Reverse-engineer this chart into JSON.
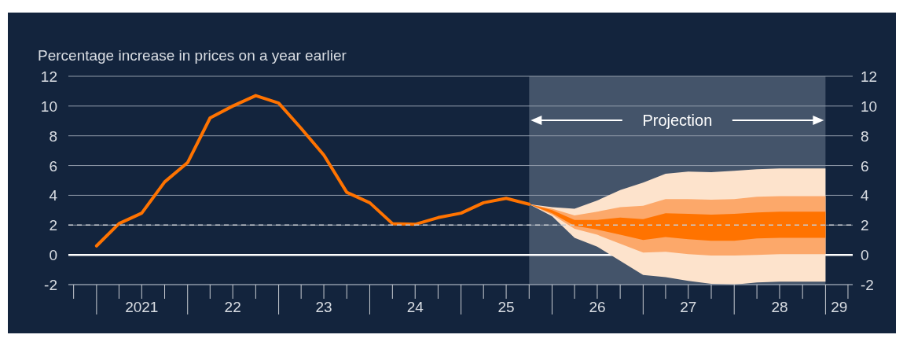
{
  "chart_data": {
    "type": "line",
    "ylabel": "Percentage increase in prices on a year earlier",
    "xlim": [
      "2020-09-10",
      "2029-04-20"
    ],
    "xticks": [
      {
        "value": "2021-07-01",
        "label": "2021"
      },
      {
        "value": "2022-07-01",
        "label": "22"
      },
      {
        "value": "2023-07-01",
        "label": "23"
      },
      {
        "value": "2024-07-01",
        "label": "24"
      },
      {
        "value": "2025-07-01",
        "label": "25"
      },
      {
        "value": "2026-07-01",
        "label": "26"
      },
      {
        "value": "2027-07-01",
        "label": "27"
      },
      {
        "value": "2028-07-01",
        "label": "28"
      },
      {
        "value": "2029-02-25",
        "label": "29"
      }
    ],
    "ylim": [
      -2,
      12
    ],
    "yticks": [
      -2,
      0,
      2,
      4,
      6,
      8,
      10,
      12
    ],
    "y2lim": [
      -2,
      12
    ],
    "y2ticks": [
      -2,
      0,
      2,
      4,
      6,
      8,
      10,
      12
    ],
    "grid": "y",
    "line_style": "solid",
    "marker": "none",
    "bands": [
      {
        "axis": "x",
        "from": "2025-10-01",
        "to": "2029-01-01",
        "label": "Projection",
        "color": "#44546a"
      }
    ],
    "ref_lines": [
      {
        "axis": "y",
        "value": 2,
        "color": "#c8ccd2",
        "line_style": "dashed"
      }
    ],
    "series": [
      {
        "color": "#fde3cc",
        "x": [
          "2025-10-01",
          "2026-01-01",
          "2026-04-01",
          "2026-07-01",
          "2026-10-01",
          "2027-01-01",
          "2027-04-01",
          "2027-07-01",
          "2027-10-01",
          "2028-01-01",
          "2028-04-01",
          "2028-07-01",
          "2028-10-01",
          "2029-01-01"
        ],
        "values": [
          null,
          null,
          null,
          null,
          null,
          null,
          null,
          null,
          null,
          null,
          null,
          null,
          null,
          null
        ],
        "lower": [
          3.4,
          2.6,
          1.15,
          0.55,
          -0.4,
          -1.35,
          -1.5,
          -1.75,
          -1.95,
          -2,
          -1.85,
          -1.8,
          -1.8,
          -1.8
        ],
        "upper": [
          3.4,
          3.2,
          3.1,
          3.65,
          4.35,
          4.85,
          5.45,
          5.6,
          5.55,
          5.65,
          5.75,
          5.8,
          5.8,
          5.8
        ]
      },
      {
        "color": "#fca86a",
        "x": [
          "2025-10-01",
          "2026-01-01",
          "2026-04-01",
          "2026-07-01",
          "2026-10-01",
          "2027-01-01",
          "2027-04-01",
          "2027-07-01",
          "2027-10-01",
          "2028-01-01",
          "2028-04-01",
          "2028-07-01",
          "2028-10-01",
          "2029-01-01"
        ],
        "values": [
          null,
          null,
          null,
          null,
          null,
          null,
          null,
          null,
          null,
          null,
          null,
          null,
          null,
          null
        ],
        "lower": [
          3.4,
          2.7,
          1.75,
          1.35,
          0.75,
          0.15,
          0.2,
          0.05,
          -0.05,
          -0.05,
          0,
          0.05,
          0.05,
          0.05
        ],
        "upper": [
          3.4,
          3.1,
          2.65,
          2.9,
          3.2,
          3.3,
          3.75,
          3.75,
          3.7,
          3.75,
          3.9,
          3.95,
          3.95,
          3.95
        ]
      },
      {
        "color": "#ff7300",
        "x": [
          "2025-10-01",
          "2026-01-01",
          "2026-04-01",
          "2026-07-01",
          "2026-10-01",
          "2027-01-01",
          "2027-04-01",
          "2027-07-01",
          "2027-10-01",
          "2028-01-01",
          "2028-04-01",
          "2028-07-01",
          "2028-10-01",
          "2029-01-01"
        ],
        "values": [
          null,
          null,
          null,
          null,
          null,
          null,
          null,
          null,
          null,
          null,
          null,
          null,
          null,
          null
        ],
        "lower": [
          3.4,
          2.8,
          1.95,
          1.7,
          1.35,
          1,
          1.2,
          1.05,
          0.95,
          0.95,
          1.1,
          1.15,
          1.15,
          1.15
        ],
        "upper": [
          3.4,
          3,
          2.35,
          2.35,
          2.5,
          2.4,
          2.8,
          2.75,
          2.7,
          2.75,
          2.85,
          2.9,
          2.9,
          2.9
        ]
      },
      {
        "color": "#ff7300",
        "x": [
          "2021-01-01",
          "2021-04-01",
          "2021-07-01",
          "2021-10-01",
          "2022-01-01",
          "2022-04-01",
          "2022-07-01",
          "2022-10-01",
          "2023-01-01",
          "2023-04-01",
          "2023-07-01",
          "2023-10-01",
          "2024-01-01",
          "2024-04-01",
          "2024-07-01",
          "2024-10-01",
          "2025-01-01",
          "2025-04-01",
          "2025-07-01",
          "2025-10-01"
        ],
        "values": [
          0.6,
          2.1,
          2.8,
          4.9,
          6.2,
          9.2,
          10,
          10.7,
          10.2,
          8.5,
          6.7,
          4.2,
          3.5,
          2.1,
          2.05,
          2.5,
          2.8,
          3.5,
          3.8,
          3.4
        ]
      }
    ]
  }
}
